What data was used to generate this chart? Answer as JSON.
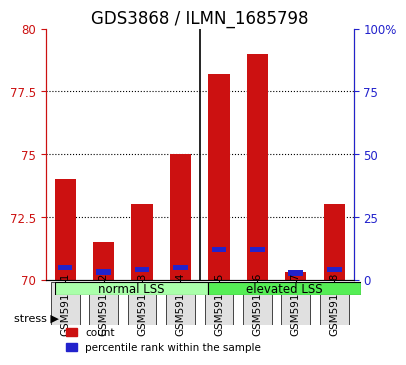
{
  "title": "GDS3868 / ILMN_1685798",
  "samples": [
    "GSM591781",
    "GSM591782",
    "GSM591783",
    "GSM591784",
    "GSM591785",
    "GSM591786",
    "GSM591787",
    "GSM591788"
  ],
  "red_values": [
    74.0,
    71.5,
    73.0,
    75.0,
    78.2,
    79.0,
    70.3,
    73.0
  ],
  "blue_values": [
    70.38,
    70.2,
    70.3,
    70.38,
    71.1,
    71.1,
    70.15,
    70.3
  ],
  "ymin": 70.0,
  "ymax": 80.0,
  "yticks": [
    70,
    72.5,
    75,
    77.5,
    80
  ],
  "ytick_labels": [
    "70",
    "72.5",
    "75",
    "77.5",
    "80"
  ],
  "right_yticks": [
    0,
    25,
    50,
    75,
    100
  ],
  "right_ytick_labels": [
    "0",
    "25",
    "50",
    "75",
    "100%"
  ],
  "group1_label": "normal LSS",
  "group2_label": "elevated LSS",
  "group1_color": "#aaffaa",
  "group2_color": "#55ee55",
  "stress_label": "stress",
  "legend_count": "count",
  "legend_pct": "percentile rank within the sample",
  "red_color": "#cc1111",
  "blue_color": "#2222cc",
  "bar_width": 0.55,
  "grid_color": "#888888",
  "title_fontsize": 12,
  "axis_label_fontsize": 8,
  "tick_fontsize": 8.5,
  "sample_label_fontsize": 7.5
}
